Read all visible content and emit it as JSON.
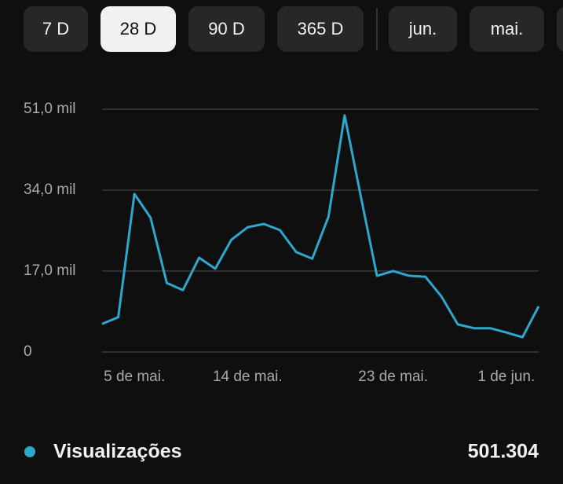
{
  "tabs": [
    "7 D",
    "28 D",
    "90 D",
    "365 D",
    "jun.",
    "mai."
  ],
  "selected_tab": 1,
  "chart_data": {
    "type": "line",
    "categories": [
      null,
      null,
      "5 de mai.",
      null,
      null,
      null,
      null,
      null,
      null,
      "14 de mai.",
      null,
      null,
      null,
      null,
      null,
      null,
      null,
      null,
      "23 de mai.",
      null,
      null,
      null,
      null,
      null,
      null,
      "1 de jun.",
      null,
      null
    ],
    "series": [
      {
        "name": "Visualizações",
        "color": "#2ea7cf",
        "values": [
          5.9,
          7.3,
          33.2,
          28.2,
          14.5,
          13.0,
          19.8,
          17.5,
          23.6,
          26.2,
          26.9,
          25.6,
          21.0,
          19.6,
          28.4,
          49.7,
          32.7,
          16.0,
          17.0,
          16.0,
          15.8,
          11.6,
          5.8,
          5.0,
          5.0,
          4.1,
          3.1,
          9.6
        ]
      }
    ],
    "ylim": [
      0,
      51
    ],
    "yticks": [
      0,
      {
        "value": 17,
        "label": "17,0 mil"
      },
      {
        "value": 34,
        "label": "34,0 mil"
      },
      {
        "value": 51,
        "label": "51,0 mil"
      }
    ],
    "grid": true,
    "total": "501.304"
  }
}
